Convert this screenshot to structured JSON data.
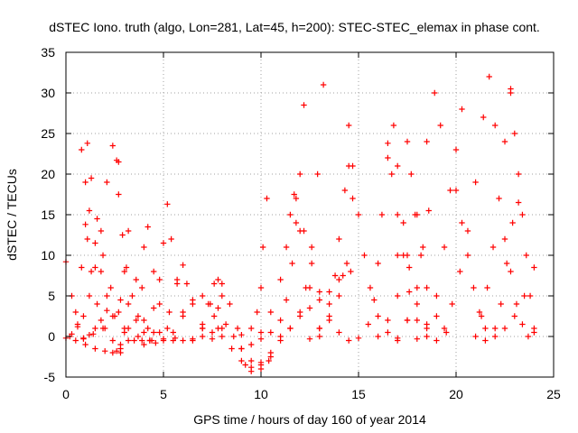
{
  "chart_data": {
    "type": "scatter",
    "title": "dSTEC Iono. truth (algo, Lon=281, Lat=45, h=200): STEC-STEC_elemax in phase cont.",
    "xlabel": "GPS time / hours of day 160 of year 2014",
    "ylabel": "dSTEC  / TECUs",
    "xlim": [
      0,
      25
    ],
    "ylim": [
      -5,
      35
    ],
    "xticks": [
      0,
      5,
      10,
      15,
      20,
      25
    ],
    "yticks": [
      -5,
      0,
      5,
      10,
      15,
      20,
      25,
      30,
      35
    ],
    "grid": true,
    "marker": "+",
    "color": "#ff0000",
    "series": [
      {
        "x": [
          0.0,
          0.3,
          0.6,
          0.9,
          1.2,
          1.5,
          1.8,
          2.1
        ],
        "y": [
          9.2,
          5.0,
          1.5,
          -0.3,
          0.2,
          1.0,
          2.0,
          3.2
        ]
      },
      {
        "x": [
          0.0,
          0.3,
          0.6,
          0.9,
          1.2,
          1.5,
          1.8,
          2.1,
          2.4,
          2.7
        ],
        "y": [
          -0.2,
          0.3,
          1.2,
          2.5,
          5.0,
          8.5,
          13.0,
          19.0,
          23.5,
          21.5
        ]
      },
      {
        "x": [
          0.2,
          0.5,
          0.8,
          1.0,
          1.1,
          1.3,
          1.6,
          2.0,
          2.4,
          2.8
        ],
        "y": [
          0.0,
          3.0,
          8.5,
          13.8,
          12.0,
          8.0,
          4.0,
          1.0,
          -0.5,
          -1.5
        ]
      },
      {
        "x": [
          0.8,
          1.0,
          1.2,
          1.5,
          1.8,
          2.1,
          2.5,
          3.0,
          3.5,
          4.0,
          4.6
        ],
        "y": [
          23.0,
          19.0,
          15.5,
          11.5,
          8.0,
          5.0,
          2.5,
          0.5,
          -0.5,
          -1.0,
          -0.8
        ]
      },
      {
        "x": [
          1.1,
          1.3,
          1.6,
          1.9,
          2.3,
          2.7,
          3.2,
          3.7,
          4.3
        ],
        "y": [
          23.8,
          19.5,
          14.5,
          10.0,
          6.0,
          3.0,
          1.0,
          0.0,
          -0.5
        ]
      },
      {
        "x": [
          0.5,
          0.9,
          1.4,
          1.9,
          2.4,
          2.8,
          3.0,
          3.2
        ],
        "y": [
          -0.5,
          -0.2,
          0.3,
          1.0,
          2.5,
          4.5,
          8.0,
          13.0
        ]
      },
      {
        "x": [
          2.6,
          2.7,
          2.9,
          3.1,
          3.4,
          3.7,
          4.0,
          4.4
        ],
        "y": [
          21.7,
          17.5,
          12.5,
          8.5,
          5.0,
          2.5,
          0.5,
          -0.5
        ]
      },
      {
        "x": [
          1.0,
          1.5,
          2.0,
          2.4,
          2.6,
          2.8,
          3.0,
          3.2,
          3.6
        ],
        "y": [
          -1.0,
          -1.5,
          -1.8,
          -2.0,
          -1.8,
          -1.0,
          1.0,
          4.0,
          7.0
        ]
      },
      {
        "x": [
          2.8,
          3.2,
          3.6,
          3.9,
          4.0,
          4.2,
          4.5,
          4.8,
          5.2,
          5.6
        ],
        "y": [
          -2.0,
          -0.5,
          2.0,
          6.0,
          11.0,
          13.5,
          8.0,
          4.0,
          1.0,
          -0.2
        ]
      },
      {
        "x": [
          3.9,
          4.2,
          4.5,
          4.8,
          5.0,
          5.2,
          5.4,
          5.7,
          6.0
        ],
        "y": [
          -0.5,
          1.0,
          3.5,
          7.0,
          11.5,
          16.3,
          12.0,
          7.0,
          3.0
        ]
      },
      {
        "x": [
          4.0,
          4.5,
          5.0,
          5.5,
          6.0,
          6.5,
          7.0,
          7.5,
          8.0
        ],
        "y": [
          2.0,
          0.5,
          -0.3,
          -0.5,
          -0.5,
          -0.3,
          0.0,
          0.5,
          1.0
        ]
      },
      {
        "x": [
          4.3,
          4.8,
          5.3,
          5.7,
          6.0,
          6.2,
          6.5,
          7.0,
          7.5
        ],
        "y": [
          -0.5,
          0.5,
          3.0,
          6.5,
          8.8,
          6.5,
          4.0,
          1.0,
          -0.3
        ]
      },
      {
        "x": [
          5.0,
          5.5,
          6.0,
          6.5,
          7.0,
          7.3,
          7.6,
          7.8
        ],
        "y": [
          -0.5,
          0.5,
          2.5,
          4.5,
          5.0,
          4.0,
          2.5,
          1.0
        ]
      },
      {
        "x": [
          6.5,
          7.0,
          7.4,
          7.6,
          7.8,
          8.0
        ],
        "y": [
          -0.5,
          1.5,
          4.0,
          6.5,
          7.0,
          5.0
        ]
      },
      {
        "x": [
          8.0,
          8.4,
          8.8,
          9.0,
          9.2,
          9.5,
          10.0,
          10.5
        ],
        "y": [
          6.5,
          4.0,
          1.0,
          -1.5,
          -3.5,
          -4.3,
          -3.5,
          -2.5
        ]
      },
      {
        "x": [
          7.8,
          8.2,
          8.6,
          9.0,
          9.5,
          10.0,
          10.4
        ],
        "y": [
          3.5,
          1.5,
          0.0,
          -1.5,
          -3.0,
          -4.0,
          -3.0
        ]
      },
      {
        "x": [
          8.5,
          9.0,
          9.5,
          10.0,
          10.5,
          11.0,
          11.5,
          12.0,
          12.5,
          13.0,
          13.5,
          14.0
        ],
        "y": [
          -1.5,
          -3.0,
          -3.8,
          -3.2,
          -2.0,
          -0.5,
          1.0,
          2.5,
          3.5,
          4.5,
          5.5,
          7.0
        ]
      },
      {
        "x": [
          7.0,
          8.0,
          9.0,
          9.5,
          9.8,
          10.0,
          10.1,
          10.3
        ],
        "y": [
          1.0,
          0.0,
          0.2,
          1.0,
          3.0,
          6.0,
          11.0,
          17.0
        ]
      },
      {
        "x": [
          9.5,
          10.0,
          10.5,
          11.0,
          11.3,
          11.5,
          11.7,
          12.0,
          12.5,
          13.0
        ],
        "y": [
          -1.0,
          0.5,
          3.0,
          7.0,
          11.0,
          15.0,
          17.5,
          13.0,
          6.0,
          1.0
        ]
      },
      {
        "x": [
          10.0,
          10.5,
          11.0,
          11.3,
          11.6,
          11.8,
          12.0,
          12.2
        ],
        "y": [
          -0.3,
          0.5,
          2.0,
          4.5,
          9.0,
          14.0,
          20.0,
          28.5
        ]
      },
      {
        "x": [
          11.0,
          11.5,
          12.0,
          12.3,
          12.6,
          12.9,
          13.2
        ],
        "y": [
          0.0,
          1.0,
          3.0,
          6.0,
          11.0,
          20.0,
          31.0
        ]
      },
      {
        "x": [
          11.8,
          12.2,
          12.6,
          13.0,
          13.5,
          14.0,
          14.5
        ],
        "y": [
          17.0,
          13.0,
          9.0,
          5.5,
          2.5,
          0.5,
          -0.5
        ]
      },
      {
        "x": [
          12.5,
          13.0,
          13.5,
          13.8,
          14.0,
          14.3,
          14.5,
          14.7
        ],
        "y": [
          -0.3,
          1.0,
          4.0,
          7.5,
          12.0,
          18.0,
          21.0,
          17.0
        ]
      },
      {
        "x": [
          14.5,
          14.7,
          15.0,
          15.3,
          15.6,
          16.0,
          16.5,
          17.0
        ],
        "y": [
          26.0,
          21.0,
          15.0,
          10.0,
          6.0,
          2.5,
          0.5,
          -0.5
        ]
      },
      {
        "x": [
          13.0,
          13.5,
          14.0,
          14.2,
          14.4,
          14.6
        ],
        "y": [
          0.0,
          2.0,
          5.0,
          7.5,
          9.0,
          8.0
        ]
      },
      {
        "x": [
          15.0,
          15.5,
          15.8,
          16.0,
          16.2,
          16.5,
          17.0,
          17.5
        ],
        "y": [
          -0.2,
          1.5,
          4.5,
          9.0,
          15.0,
          22.0,
          10.0,
          2.0
        ]
      },
      {
        "x": [
          16.5,
          16.7,
          17.0,
          17.3,
          17.6,
          18.0,
          18.5
        ],
        "y": [
          23.8,
          20.0,
          15.0,
          10.0,
          5.5,
          2.0,
          0.0
        ]
      },
      {
        "x": [
          16.8,
          17.0,
          17.3,
          17.6,
          18.0,
          18.5
        ],
        "y": [
          26.0,
          21.0,
          14.0,
          8.5,
          4.0,
          1.0
        ]
      },
      {
        "x": [
          17.5,
          17.7,
          17.9,
          18.2,
          18.5,
          19.0,
          19.5
        ],
        "y": [
          24.0,
          20.0,
          15.0,
          10.0,
          6.0,
          2.5,
          0.5
        ]
      },
      {
        "x": [
          16.0,
          16.5,
          17.0,
          17.5,
          18.0,
          18.5,
          18.9,
          19.2
        ],
        "y": [
          0.0,
          2.0,
          5.0,
          10.0,
          15.0,
          24.0,
          30.0,
          26.0
        ]
      },
      {
        "x": [
          17.0,
          17.5,
          18.0,
          18.3,
          18.6
        ],
        "y": [
          -0.2,
          2.0,
          6.0,
          11.0,
          15.5
        ]
      },
      {
        "x": [
          18.0,
          18.5,
          19.0,
          19.4,
          19.7,
          20.0,
          20.3
        ],
        "y": [
          -0.3,
          1.5,
          5.0,
          11.0,
          18.0,
          23.0,
          28.0
        ]
      },
      {
        "x": [
          19.0,
          19.4,
          19.8,
          20.2,
          20.6,
          21.0,
          21.4,
          21.7,
          22.0
        ],
        "y": [
          -0.5,
          1.0,
          4.0,
          8.0,
          13.0,
          19.0,
          27.0,
          32.0,
          26.0
        ]
      },
      {
        "x": [
          20.0,
          20.3,
          20.6,
          20.9,
          21.2,
          21.5
        ],
        "y": [
          18.0,
          14.0,
          10.0,
          6.0,
          3.0,
          1.0
        ]
      },
      {
        "x": [
          21.0,
          21.3,
          21.6,
          21.9,
          22.2,
          22.5,
          22.8
        ],
        "y": [
          0.0,
          2.5,
          6.0,
          11.0,
          17.0,
          24.0,
          30.5
        ]
      },
      {
        "x": [
          22.0,
          22.3,
          22.6,
          22.9,
          23.2
        ],
        "y": [
          1.0,
          4.0,
          9.0,
          14.0,
          16.5
        ]
      },
      {
        "x": [
          22.5,
          22.8,
          23.1,
          23.4,
          23.7,
          24.0
        ],
        "y": [
          12.0,
          8.0,
          4.0,
          1.5,
          0.0,
          0.5
        ]
      },
      {
        "x": [
          21.5,
          22.0,
          22.5,
          23.0,
          23.5,
          24.0
        ],
        "y": [
          -0.5,
          0.0,
          1.0,
          2.5,
          5.0,
          8.5
        ]
      },
      {
        "x": [
          22.8,
          23.0,
          23.2,
          23.4,
          23.6,
          23.8,
          24.0
        ],
        "y": [
          30.0,
          25.0,
          20.0,
          15.0,
          10.0,
          5.0,
          1.0
        ]
      }
    ]
  }
}
